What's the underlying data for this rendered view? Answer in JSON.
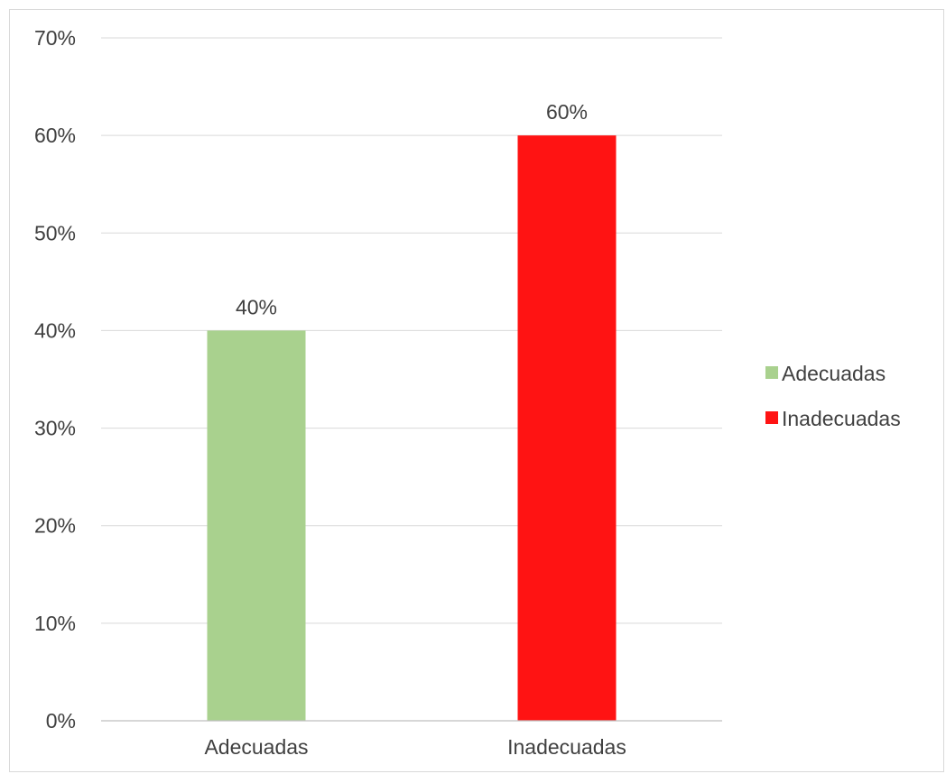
{
  "chart_data": {
    "type": "bar",
    "categories": [
      "Adecuadas",
      "Inadecuadas"
    ],
    "values": [
      40,
      60
    ],
    "value_labels": [
      "40%",
      "60%"
    ],
    "colors": [
      "#a9d18e",
      "#ff1313"
    ],
    "ylim": [
      0,
      70
    ],
    "yticks": [
      0,
      10,
      20,
      30,
      40,
      50,
      60,
      70
    ],
    "ytick_labels": [
      "0%",
      "10%",
      "20%",
      "30%",
      "40%",
      "50%",
      "60%",
      "70%"
    ],
    "grid": true,
    "legend": {
      "placement": "right",
      "entries": [
        {
          "label": "Adecuadas",
          "color": "#a9d18e"
        },
        {
          "label": "Inadecuadas",
          "color": "#ff1313"
        }
      ]
    }
  }
}
